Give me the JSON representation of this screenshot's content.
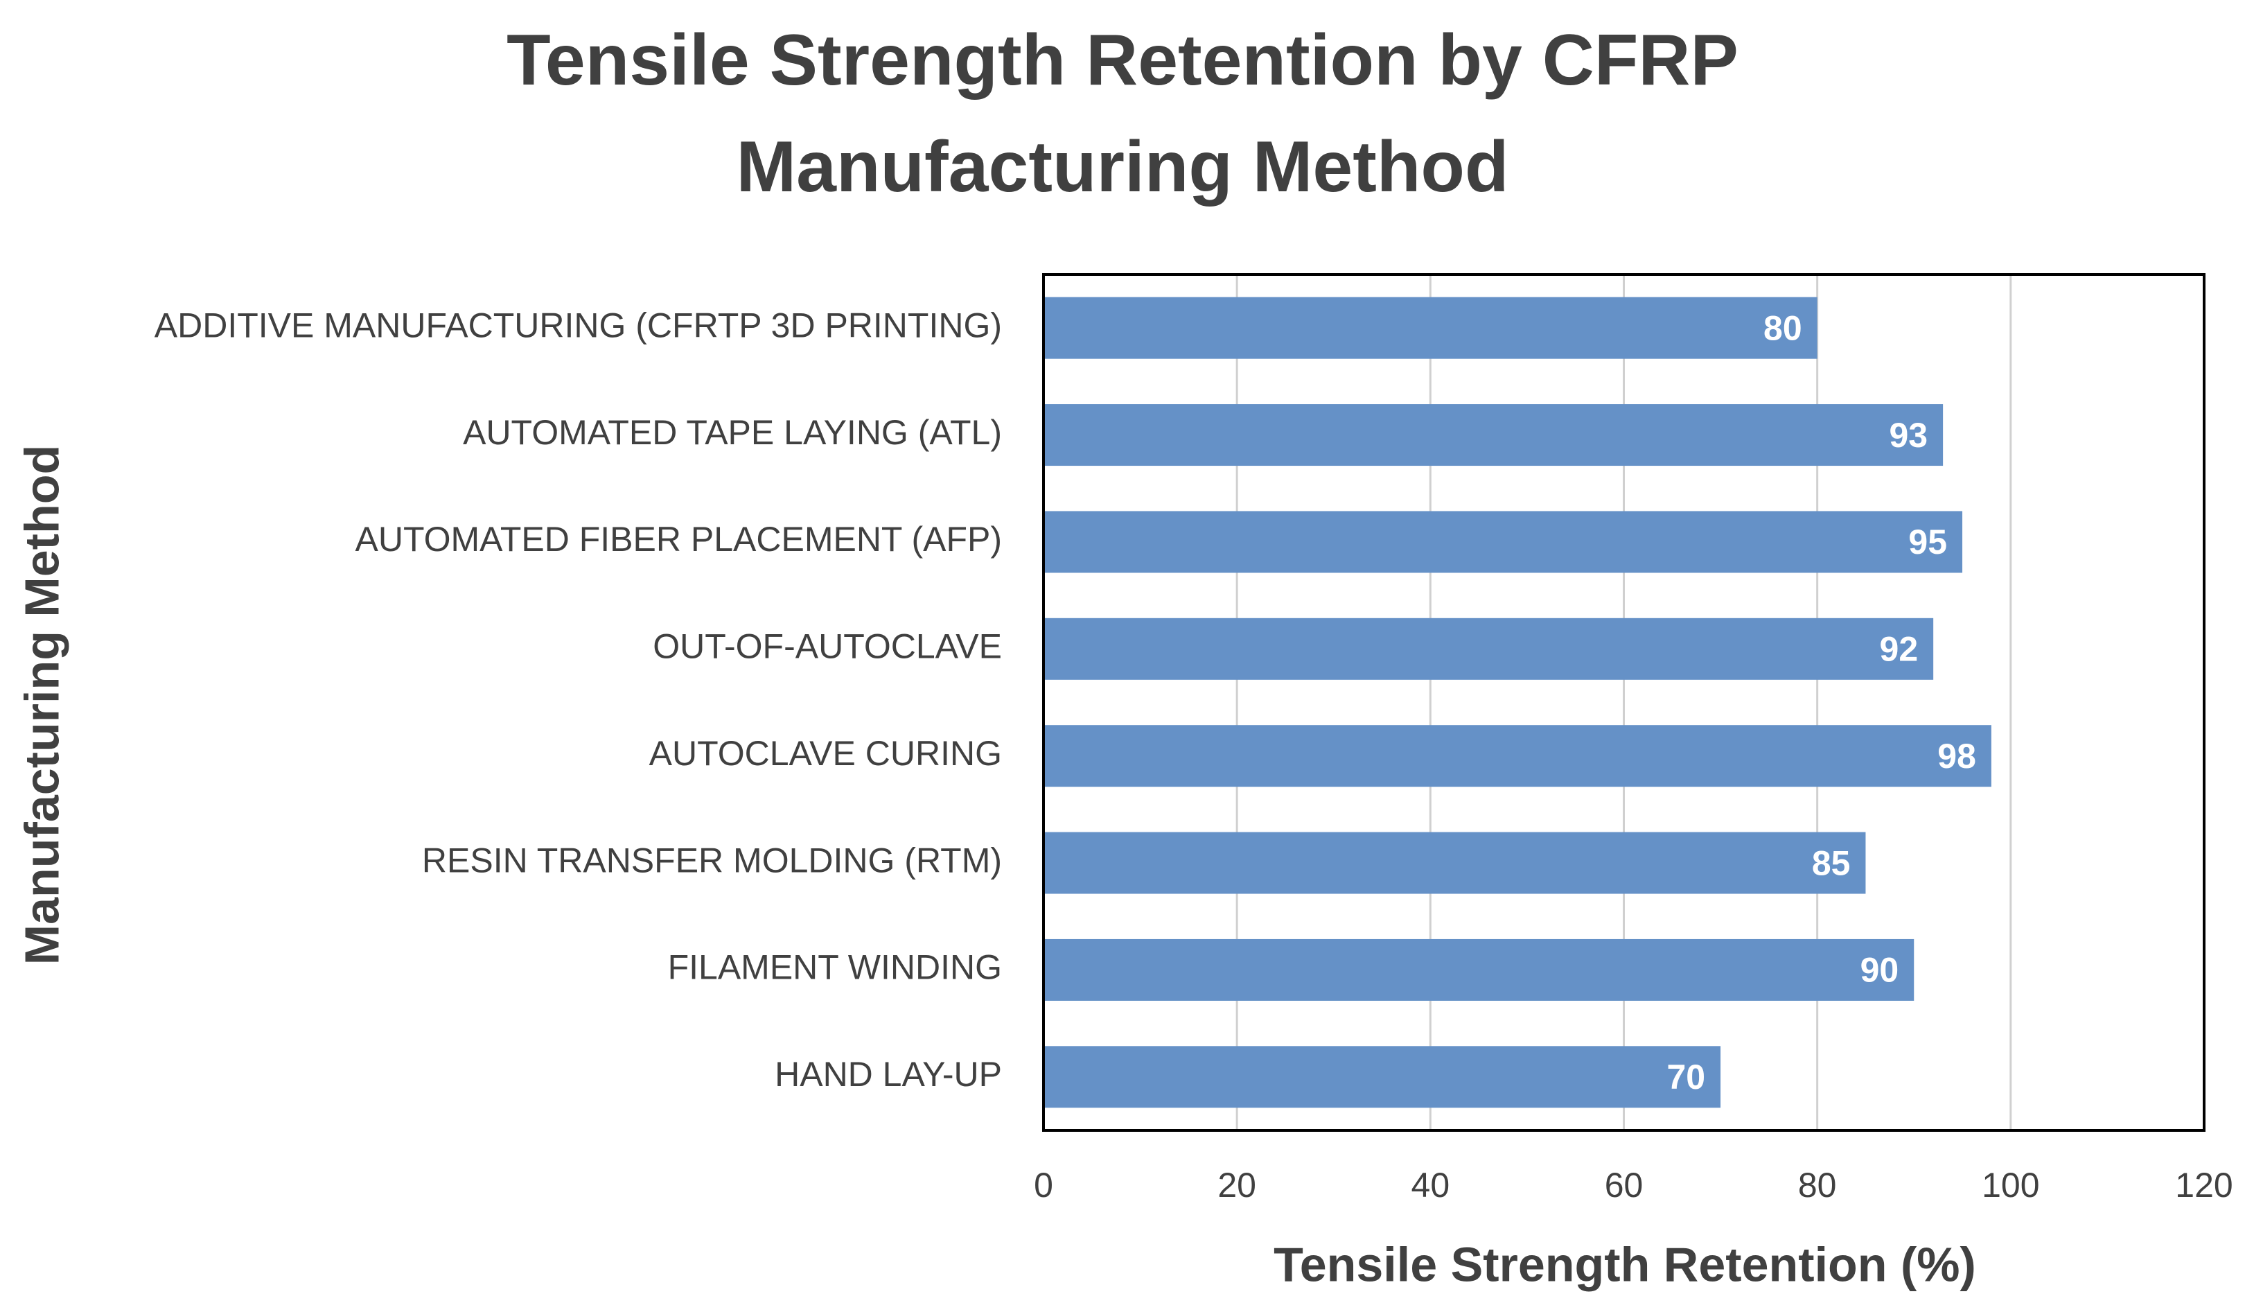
{
  "chart_data": {
    "type": "bar",
    "orientation": "horizontal",
    "title": "Tensile Strength Retention by CFRP Manufacturing Method",
    "x_label": "Tensile Strength Retention (%)",
    "y_label": "Manufacturing Method",
    "categories": [
      "ADDITIVE MANUFACTURING (CFRTP 3D PRINTING)",
      "AUTOMATED TAPE LAYING (ATL)",
      "AUTOMATED FIBER PLACEMENT (AFP)",
      "OUT-OF-AUTOCLAVE",
      "AUTOCLAVE CURING",
      "RESIN TRANSFER MOLDING (RTM)",
      "FILAMENT WINDING",
      "HAND LAY-UP"
    ],
    "values": [
      80,
      93,
      95,
      92,
      98,
      85,
      90,
      70
    ],
    "color": "#6591c7",
    "xlim": [
      0,
      120
    ],
    "xticks": [
      0,
      20,
      40,
      60,
      80,
      100,
      120
    ],
    "grid": true
  }
}
